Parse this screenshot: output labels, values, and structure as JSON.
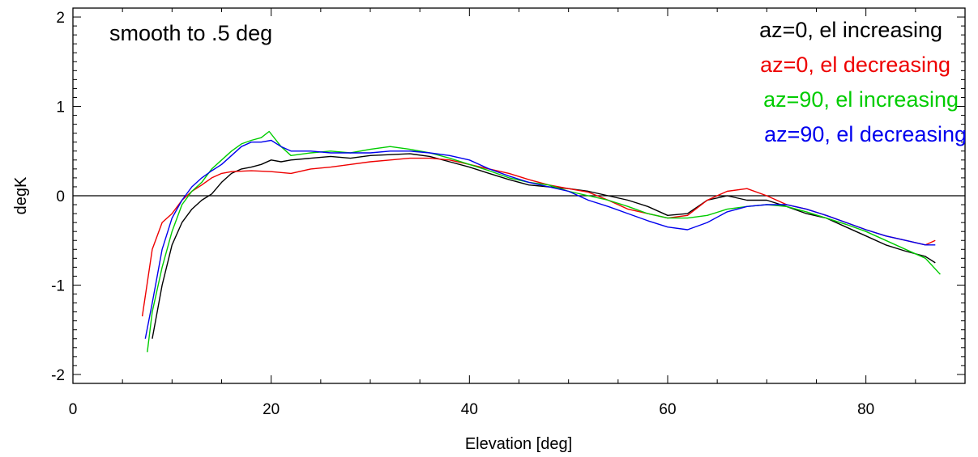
{
  "chart_data": {
    "type": "line",
    "title": "",
    "annotation": "smooth to .5 deg",
    "xlabel": "Elevation [deg]",
    "ylabel": "degK",
    "xlim": [
      0,
      90
    ],
    "ylim": [
      -2.1,
      2.1
    ],
    "xticks": [
      0,
      20,
      40,
      60,
      80
    ],
    "xtick_labels": [
      "0",
      "20",
      "40",
      "60",
      "80"
    ],
    "yticks": [
      -2,
      -1,
      0,
      1,
      2
    ],
    "ytick_labels": [
      "-2",
      "-1",
      "0",
      "1",
      "2"
    ],
    "zero_line": true,
    "grid": false,
    "legend_position": "top-right",
    "series": [
      {
        "name": "az=0, el increasing",
        "color": "#000000",
        "x": [
          8.0,
          9.0,
          10.0,
          11.0,
          12.0,
          13.0,
          14.0,
          15.0,
          16.0,
          17.0,
          18.0,
          19.0,
          20.0,
          21.0,
          22.0,
          24.0,
          26.0,
          28.0,
          30.0,
          32.0,
          34.0,
          36.0,
          38.0,
          40.0,
          42.0,
          44.0,
          46.0,
          48.0,
          50.0,
          52.0,
          54.0,
          56.0,
          58.0,
          60.0,
          62.0,
          64.0,
          66.0,
          68.0,
          70.0,
          72.0,
          74.0,
          76.0,
          78.0,
          80.0,
          82.0,
          84.0,
          86.0,
          87.0
        ],
        "y": [
          -1.6,
          -1.0,
          -0.55,
          -0.3,
          -0.15,
          -0.05,
          0.02,
          0.15,
          0.25,
          0.3,
          0.32,
          0.35,
          0.4,
          0.38,
          0.4,
          0.42,
          0.44,
          0.42,
          0.45,
          0.46,
          0.47,
          0.44,
          0.38,
          0.32,
          0.25,
          0.18,
          0.12,
          0.1,
          0.08,
          0.05,
          0.0,
          -0.05,
          -0.12,
          -0.22,
          -0.2,
          -0.05,
          0.0,
          -0.05,
          -0.05,
          -0.12,
          -0.2,
          -0.25,
          -0.35,
          -0.45,
          -0.55,
          -0.62,
          -0.68,
          -0.75
        ]
      },
      {
        "name": "az=0, el decreasing",
        "color": "#ee0000",
        "x": [
          7.0,
          8.0,
          9.0,
          10.0,
          11.0,
          12.0,
          13.0,
          14.0,
          15.0,
          16.0,
          18.0,
          20.0,
          22.0,
          24.0,
          26.0,
          28.0,
          30.0,
          32.0,
          34.0,
          36.0,
          38.0,
          40.0,
          42.0,
          44.0,
          46.0,
          48.0,
          50.0,
          52.0,
          54.0,
          56.0,
          58.0,
          60.0,
          62.0,
          64.0,
          66.0,
          68.0,
          70.0,
          72.0,
          74.0,
          76.0,
          78.0,
          80.0,
          82.0,
          84.0,
          86.0,
          87.0
        ],
        "y": [
          -1.35,
          -0.6,
          -0.3,
          -0.2,
          -0.05,
          0.05,
          0.12,
          0.2,
          0.25,
          0.27,
          0.28,
          0.27,
          0.25,
          0.3,
          0.32,
          0.35,
          0.38,
          0.4,
          0.42,
          0.42,
          0.4,
          0.35,
          0.3,
          0.25,
          0.18,
          0.12,
          0.08,
          0.04,
          -0.05,
          -0.15,
          -0.2,
          -0.25,
          -0.22,
          -0.05,
          0.05,
          0.08,
          0.0,
          -0.1,
          -0.15,
          -0.22,
          -0.3,
          -0.38,
          -0.45,
          -0.5,
          -0.55,
          -0.5
        ]
      },
      {
        "name": "az=90, el increasing",
        "color": "#00cc00",
        "x": [
          7.5,
          8.0,
          9.0,
          10.0,
          11.0,
          12.0,
          13.0,
          14.0,
          15.0,
          16.0,
          17.0,
          18.0,
          19.0,
          19.8,
          21.0,
          22.0,
          24.0,
          26.0,
          28.0,
          30.0,
          32.0,
          34.0,
          36.0,
          38.0,
          40.0,
          42.0,
          44.0,
          46.0,
          48.0,
          50.0,
          52.0,
          54.0,
          56.0,
          58.0,
          60.0,
          62.0,
          64.0,
          66.0,
          68.0,
          70.0,
          72.0,
          74.0,
          76.0,
          78.0,
          80.0,
          82.0,
          84.0,
          86.0,
          87.5
        ],
        "y": [
          -1.75,
          -1.3,
          -0.8,
          -0.4,
          -0.1,
          0.05,
          0.15,
          0.3,
          0.4,
          0.5,
          0.58,
          0.62,
          0.65,
          0.72,
          0.55,
          0.45,
          0.48,
          0.5,
          0.48,
          0.52,
          0.55,
          0.52,
          0.48,
          0.42,
          0.35,
          0.28,
          0.2,
          0.15,
          0.12,
          0.05,
          0.0,
          -0.05,
          -0.12,
          -0.2,
          -0.25,
          -0.25,
          -0.22,
          -0.15,
          -0.12,
          -0.1,
          -0.12,
          -0.18,
          -0.25,
          -0.32,
          -0.4,
          -0.5,
          -0.6,
          -0.7,
          -0.88
        ]
      },
      {
        "name": "az=90, el decreasing",
        "color": "#0000ee",
        "x": [
          7.3,
          8.0,
          9.0,
          10.0,
          11.0,
          12.0,
          13.0,
          14.0,
          15.0,
          16.0,
          17.0,
          18.0,
          19.0,
          20.0,
          21.0,
          22.0,
          24.0,
          26.0,
          28.0,
          30.0,
          32.0,
          34.0,
          36.0,
          38.0,
          40.0,
          42.0,
          44.0,
          46.0,
          48.0,
          50.0,
          52.0,
          54.0,
          56.0,
          58.0,
          60.0,
          62.0,
          64.0,
          66.0,
          68.0,
          70.0,
          72.0,
          74.0,
          76.0,
          78.0,
          80.0,
          82.0,
          84.0,
          86.0,
          87.0
        ],
        "y": [
          -1.6,
          -1.2,
          -0.6,
          -0.25,
          -0.05,
          0.1,
          0.2,
          0.28,
          0.35,
          0.45,
          0.55,
          0.6,
          0.6,
          0.62,
          0.55,
          0.5,
          0.5,
          0.48,
          0.48,
          0.48,
          0.5,
          0.5,
          0.48,
          0.45,
          0.4,
          0.3,
          0.22,
          0.15,
          0.1,
          0.05,
          -0.05,
          -0.12,
          -0.2,
          -0.28,
          -0.35,
          -0.38,
          -0.3,
          -0.18,
          -0.12,
          -0.1,
          -0.1,
          -0.15,
          -0.22,
          -0.3,
          -0.38,
          -0.45,
          -0.5,
          -0.55,
          -0.55
        ]
      }
    ]
  }
}
